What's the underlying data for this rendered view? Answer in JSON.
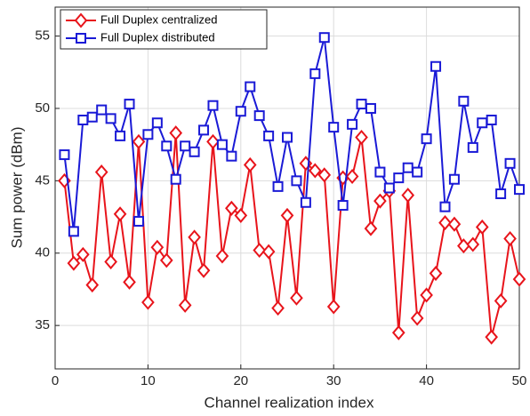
{
  "chart_data": {
    "type": "line",
    "xlabel": "Channel realization index",
    "ylabel": "Sum power (dBm)",
    "x": [
      1,
      2,
      3,
      4,
      5,
      6,
      7,
      8,
      9,
      10,
      11,
      12,
      13,
      14,
      15,
      16,
      17,
      18,
      19,
      20,
      21,
      22,
      23,
      24,
      25,
      26,
      27,
      28,
      29,
      30,
      31,
      32,
      33,
      34,
      35,
      36,
      37,
      38,
      39,
      40,
      41,
      42,
      43,
      44,
      45,
      46,
      47,
      48,
      49,
      50
    ],
    "series": [
      {
        "name": "Full Duplex centralized",
        "color": "#e8141b",
        "marker": "diamond",
        "values": [
          45.0,
          39.3,
          39.9,
          37.8,
          45.6,
          39.4,
          42.7,
          38.0,
          47.7,
          36.6,
          40.4,
          39.5,
          48.3,
          36.4,
          41.1,
          38.8,
          47.7,
          39.8,
          43.1,
          42.6,
          46.1,
          40.2,
          40.1,
          36.2,
          42.6,
          36.9,
          46.2,
          45.7,
          45.4,
          36.3,
          45.2,
          45.3,
          48.0,
          41.7,
          43.6,
          44.3,
          34.5,
          44.0,
          35.5,
          37.1,
          38.6,
          42.1,
          42.0,
          40.5,
          40.6,
          41.8,
          34.2,
          36.7,
          41.0,
          38.2
        ]
      },
      {
        "name": "Full Duplex distributed",
        "color": "#1a1ad6",
        "marker": "square",
        "values": [
          46.8,
          41.5,
          49.2,
          49.4,
          49.9,
          49.3,
          48.1,
          50.3,
          42.2,
          48.2,
          49.0,
          47.4,
          45.1,
          47.4,
          47.0,
          48.5,
          50.2,
          47.5,
          46.7,
          49.8,
          51.5,
          49.5,
          48.1,
          44.6,
          48.0,
          45.0,
          43.5,
          52.4,
          54.9,
          48.7,
          43.3,
          48.9,
          50.3,
          50.0,
          45.6,
          44.5,
          45.2,
          45.9,
          45.6,
          47.9,
          52.9,
          43.2,
          45.1,
          50.5,
          47.3,
          49.0,
          49.2,
          44.1,
          46.2,
          44.4
        ]
      }
    ],
    "xlim": [
      0,
      50
    ],
    "xticks": [
      0,
      10,
      20,
      30,
      40,
      50
    ],
    "ylim": [
      32,
      57
    ],
    "yticks": [
      35,
      40,
      45,
      50,
      55
    ],
    "grid": true,
    "legend": "upper-left"
  }
}
